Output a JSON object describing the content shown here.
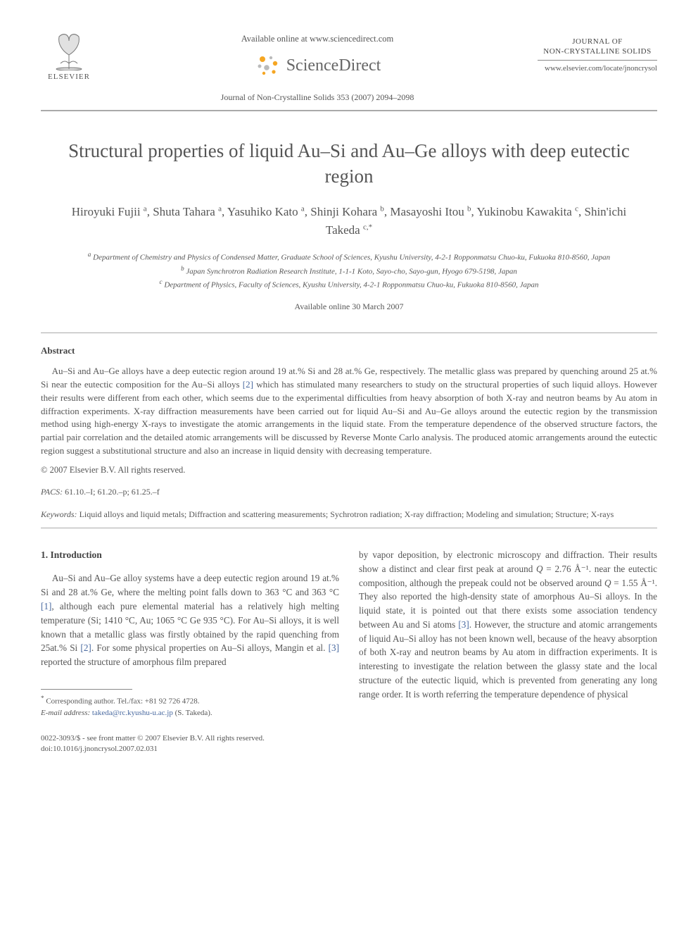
{
  "header": {
    "available_online": "Available online at www.sciencedirect.com",
    "sciencedirect": "ScienceDirect",
    "journal_ref": "Journal of Non-Crystalline Solids 353 (2007) 2094–2098",
    "publisher": "ELSEVIER",
    "journal_title_line1": "JOURNAL OF",
    "journal_title_line2": "NON-CRYSTALLINE SOLIDS",
    "locate_url": "www.elsevier.com/locate/jnoncrysol"
  },
  "title": "Structural properties of liquid Au–Si and Au–Ge alloys with deep eutectic region",
  "authors_html": "Hiroyuki Fujii <sup>a</sup>, Shuta Tahara <sup>a</sup>, Yasuhiko Kato <sup>a</sup>, Shinji Kohara <sup>b</sup>, Masayoshi Itou <sup>b</sup>, Yukinobu Kawakita <sup>c</sup>, Shin'ichi Takeda <sup>c,*</sup>",
  "affiliations": {
    "a": "Department of Chemistry and Physics of Condensed Matter, Graduate School of Sciences, Kyushu University, 4-2-1 Ropponmatsu Chuo-ku, Fukuoka 810-8560, Japan",
    "b": "Japan Synchrotron Radiation Research Institute, 1-1-1 Koto, Sayo-cho, Sayo-gun, Hyogo 679-5198, Japan",
    "c": "Department of Physics, Faculty of Sciences, Kyushu University, 4-2-1 Ropponmatsu Chuo-ku, Fukuoka 810-8560, Japan"
  },
  "available_date": "Available online 30 March 2007",
  "abstract_heading": "Abstract",
  "abstract_body": "Au–Si and Au–Ge alloys have a deep eutectic region around 19 at.% Si and 28 at.% Ge, respectively. The metallic glass was prepared by quenching around 25 at.% Si near the eutectic composition for the Au–Si alloys [2] which has stimulated many researchers to study on the structural properties of such liquid alloys. However their results were different from each other, which seems due to the experimental difficulties from heavy absorption of both X-ray and neutron beams by Au atom in diffraction experiments. X-ray diffraction measurements have been carried out for liquid Au–Si and Au–Ge alloys around the eutectic region by the transmission method using high-energy X-rays to investigate the atomic arrangements in the liquid state. From the temperature dependence of the observed structure factors, the partial pair correlation and the detailed atomic arrangements will be discussed by Reverse Monte Carlo analysis. The produced atomic arrangements around the eutectic region suggest a substitutional structure and also an increase in liquid density with decreasing temperature.",
  "copyright": "© 2007 Elsevier B.V. All rights reserved.",
  "pacs_label": "PACS:",
  "pacs": "61.10.–I; 61.20.–p; 61.25.–f",
  "keywords_label": "Keywords:",
  "keywords": "Liquid alloys and liquid metals; Diffraction and scattering measurements; Sychrotron radiation; X-ray diffraction; Modeling and simulation; Structure; X-rays",
  "intro_heading": "1. Introduction",
  "intro_col1": "Au–Si and Au–Ge alloy systems have a deep eutectic region around 19 at.% Si and 28 at.% Ge, where the melting point falls down to 363 °C and 363 °C [1], although each pure elemental material has a relatively high melting temperature (Si; 1410 °C, Au; 1065 °C Ge 935 °C). For Au–Si alloys, it is well known that a metallic glass was firstly obtained by the rapid quenching from 25at.% Si [2]. For some physical properties on Au–Si alloys, Mangin et al. [3] reported the structure of amorphous film prepared",
  "intro_col2": "by vapor deposition, by electronic microscopy and diffraction. Their results show a distinct and clear first peak at around Q = 2.76 Å⁻¹. near the eutectic composition, although the prepeak could not be observed around Q = 1.55 Å⁻¹. They also reported the high-density state of amorphous Au–Si alloys. In the liquid state, it is pointed out that there exists some association tendency between Au and Si atoms [3]. However, the structure and atomic arrangements of liquid Au–Si alloy has not been known well, because of the heavy absorption of both X-ray and neutron beams by Au atom in diffraction experiments. It is interesting to investigate the relation between the glassy state and the local structure of the eutectic liquid, which is prevented from generating any long range order. It is worth referring the temperature dependence of physical",
  "footnote": {
    "corresponding": "Corresponding author. Tel./fax: +81 92 726 4728.",
    "email_label": "E-mail address:",
    "email": "takeda@rc.kyushu-u.ac.jp",
    "email_name": "(S. Takeda)."
  },
  "doi": {
    "line1": "0022-3093/$ - see front matter © 2007 Elsevier B.V. All rights reserved.",
    "line2": "doi:10.1016/j.jnoncrysol.2007.02.031"
  },
  "colors": {
    "text": "#555555",
    "link": "#4a6aa0",
    "rule": "#aaaaaa",
    "sd_orange": "#f5a623",
    "sd_grey": "#999999"
  }
}
